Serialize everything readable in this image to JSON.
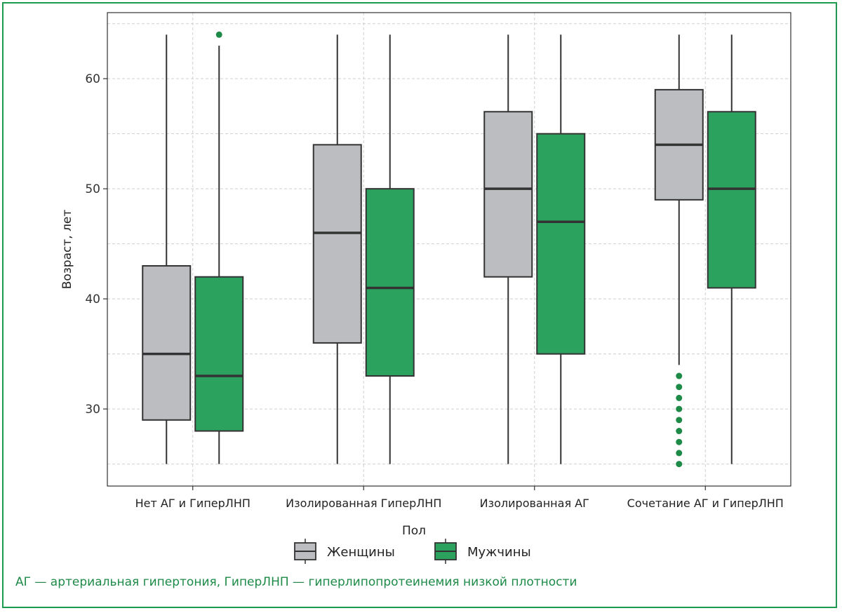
{
  "chart_data": {
    "type": "box",
    "title": "",
    "ylabel": "Возраст, лет",
    "xlabel": "",
    "ylim": [
      23,
      66
    ],
    "yticks": [
      30,
      40,
      50,
      60
    ],
    "grid": true,
    "categories": [
      "Нет АГ и ГиперЛНП",
      "Изолированная ГиперЛНП",
      "Изолированная АГ",
      "Сочетание АГ и ГиперЛНП"
    ],
    "legend": {
      "title": "Пол",
      "placement": "bottom-center",
      "entries": [
        {
          "name": "Женщины",
          "color": "#bcbdc0"
        },
        {
          "name": "Мужчины",
          "color": "#2ca25f"
        }
      ]
    },
    "series": [
      {
        "name": "Женщины",
        "color": "#bcbdc0",
        "boxes": [
          {
            "whisker_low": 25,
            "q1": 29,
            "median": 35,
            "q3": 43,
            "whisker_high": 64,
            "outliers": []
          },
          {
            "whisker_low": 25,
            "q1": 36,
            "median": 46,
            "q3": 54,
            "whisker_high": 64,
            "outliers": []
          },
          {
            "whisker_low": 25,
            "q1": 42,
            "median": 50,
            "q3": 57,
            "whisker_high": 64,
            "outliers": []
          },
          {
            "whisker_low": 34,
            "q1": 49,
            "median": 54,
            "q3": 59,
            "whisker_high": 64,
            "outliers": [
              25,
              26,
              27,
              28,
              29,
              30,
              31,
              32,
              33
            ]
          }
        ]
      },
      {
        "name": "Мужчины",
        "color": "#2ca25f",
        "boxes": [
          {
            "whisker_low": 25,
            "q1": 28,
            "median": 33,
            "q3": 42,
            "whisker_high": 63,
            "outliers": [
              64
            ]
          },
          {
            "whisker_low": 25,
            "q1": 33,
            "median": 41,
            "q3": 50,
            "whisker_high": 64,
            "outliers": []
          },
          {
            "whisker_low": 25,
            "q1": 35,
            "median": 47,
            "q3": 55,
            "whisker_high": 64,
            "outliers": []
          },
          {
            "whisker_low": 25,
            "q1": 41,
            "median": 50,
            "q3": 57,
            "whisker_high": 64,
            "outliers": []
          }
        ]
      }
    ],
    "outlier_color": "#1d8a47"
  },
  "footnote": "АГ — артериальная гипертония, ГиперЛНП — гиперлипопротеинемия низкой плотности"
}
